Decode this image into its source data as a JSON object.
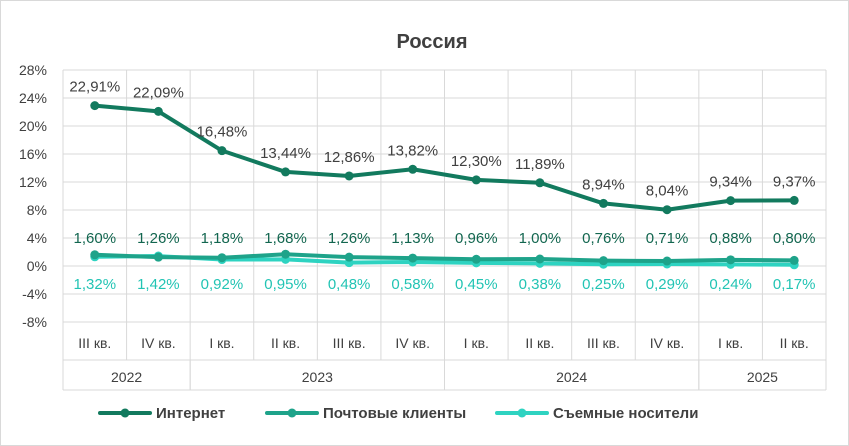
{
  "chart_data": {
    "type": "line",
    "title": "Россия",
    "categories": [
      "III кв.",
      "IV кв.",
      "I кв.",
      "II кв.",
      "III кв.",
      "IV кв.",
      "I кв.",
      "II кв.",
      "III кв.",
      "IV кв.",
      "I кв.",
      "II кв."
    ],
    "years": [
      {
        "label": "2022",
        "start": 0,
        "end": 1
      },
      {
        "label": "2023",
        "start": 2,
        "end": 5
      },
      {
        "label": "2024",
        "start": 6,
        "end": 9
      },
      {
        "label": "2025",
        "start": 10,
        "end": 11
      }
    ],
    "y_ticks": [
      "28%",
      "24%",
      "20%",
      "16%",
      "12%",
      "8%",
      "4%",
      "0%",
      "-4%",
      "-8%"
    ],
    "ylim": [
      -8,
      28
    ],
    "grid": true,
    "legend_position": "bottom",
    "series": [
      {
        "name": "Интернет",
        "color": "#127A5E",
        "values": [
          22.91,
          22.09,
          16.48,
          13.44,
          12.86,
          13.82,
          12.3,
          11.89,
          8.94,
          8.04,
          9.34,
          9.37
        ],
        "labels": [
          "22,91%",
          "22,09%",
          "16,48%",
          "13,44%",
          "12,86%",
          "13,82%",
          "12,30%",
          "11,89%",
          "8,94%",
          "8,04%",
          "9,34%",
          "9,37%"
        ],
        "label_color": "#404040"
      },
      {
        "name": "Почтовые клиенты",
        "color": "#1EA38A",
        "values": [
          1.6,
          1.26,
          1.18,
          1.68,
          1.26,
          1.13,
          0.96,
          1.0,
          0.76,
          0.71,
          0.88,
          0.8
        ],
        "labels": [
          "1,60%",
          "1,26%",
          "1,18%",
          "1,68%",
          "1,26%",
          "1,13%",
          "0,96%",
          "1,00%",
          "0,76%",
          "0,71%",
          "0,88%",
          "0,80%"
        ],
        "label_color": "#12664F"
      },
      {
        "name": "Съемные носители",
        "color": "#2ED3C1",
        "values": [
          1.32,
          1.42,
          0.92,
          0.95,
          0.48,
          0.58,
          0.45,
          0.38,
          0.25,
          0.29,
          0.24,
          0.17
        ],
        "labels": [
          "1,32%",
          "1,42%",
          "0,92%",
          "0,95%",
          "0,48%",
          "0,58%",
          "0,45%",
          "0,38%",
          "0,25%",
          "0,29%",
          "0,24%",
          "0,17%"
        ],
        "label_color": "#22C4B4"
      }
    ]
  }
}
